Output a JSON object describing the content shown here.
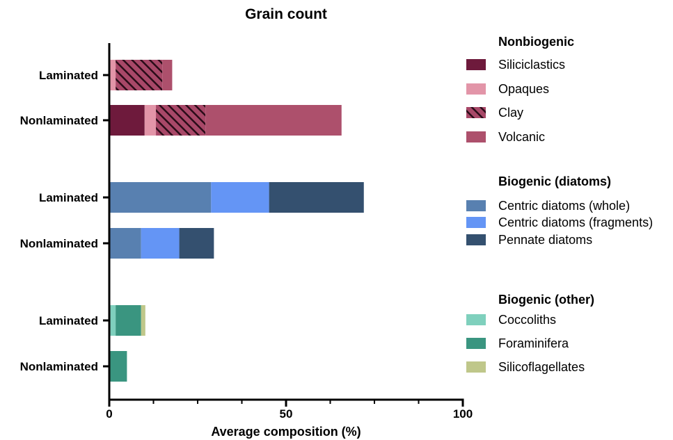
{
  "chart_data": {
    "type": "bar",
    "orientation": "horizontal",
    "stacked": true,
    "title": "Grain count",
    "xlabel": "Average composition (%)",
    "ylabel": "",
    "xlim": [
      0,
      100
    ],
    "x_ticks": [
      0,
      50,
      100
    ],
    "x_minor_ticks": [
      12.5,
      25,
      37.5,
      62.5,
      75,
      87.5
    ],
    "grid": false,
    "legend_position": "right",
    "groups": [
      {
        "name": "Nonbiogenic",
        "series": [
          {
            "name": "Siliciclastics",
            "color": "#6e1a3c",
            "pattern": "solid"
          },
          {
            "name": "Opaques",
            "color": "#e295a8",
            "pattern": "solid"
          },
          {
            "name": "Clay",
            "color": "#a84868",
            "pattern": "hatched"
          },
          {
            "name": "Volcanic",
            "color": "#ad506c",
            "pattern": "solid"
          }
        ],
        "bars": [
          {
            "category": "Laminated",
            "values": [
              0,
              1.8,
              13.2,
              2.8
            ]
          },
          {
            "category": "Nonlaminated",
            "values": [
              10.0,
              3.2,
              14.0,
              38.5
            ]
          }
        ]
      },
      {
        "name": "Biogenic (diatoms)",
        "series": [
          {
            "name": "Centric diatoms (whole)",
            "color": "#5880b0",
            "pattern": "solid"
          },
          {
            "name": "Centric diatoms (fragments)",
            "color": "#6495f5",
            "pattern": "solid"
          },
          {
            "name": "Pennate diatoms",
            "color": "#34506f",
            "pattern": "solid"
          }
        ],
        "bars": [
          {
            "category": "Laminated",
            "values": [
              28.8,
              16.4,
              26.8
            ]
          },
          {
            "category": "Nonlaminated",
            "values": [
              9.0,
              10.8,
              9.8
            ]
          }
        ]
      },
      {
        "name": "Biogenic (other)",
        "series": [
          {
            "name": "Coccoliths",
            "color": "#7fd0bd",
            "pattern": "solid"
          },
          {
            "name": "Foraminifera",
            "color": "#3a9580",
            "pattern": "solid"
          },
          {
            "name": "Silicoflagellates",
            "color": "#bfc78a",
            "pattern": "solid"
          }
        ],
        "bars": [
          {
            "category": "Laminated",
            "values": [
              1.8,
              7.2,
              1.2
            ]
          },
          {
            "category": "Nonlaminated",
            "values": [
              0,
              5.0,
              0
            ]
          }
        ]
      }
    ]
  }
}
